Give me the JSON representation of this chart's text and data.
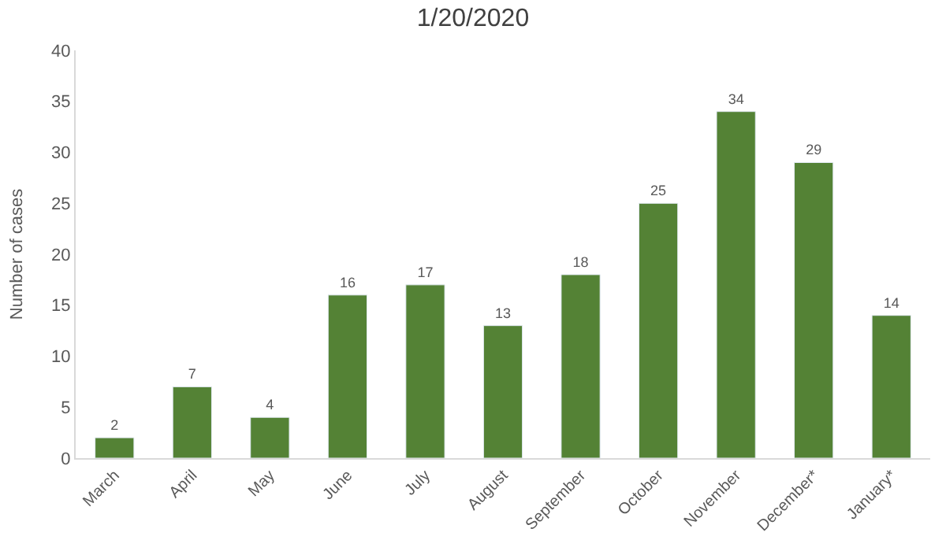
{
  "chart_data": {
    "type": "bar",
    "title": "1/20/2020",
    "ylabel": "Number of cases",
    "categories": [
      "March",
      "April",
      "May",
      "June",
      "July",
      "August",
      "September",
      "October",
      "November",
      "December*",
      "January*"
    ],
    "values": [
      2,
      7,
      4,
      16,
      17,
      13,
      18,
      25,
      34,
      29,
      14
    ],
    "color": "#548235",
    "ylim": [
      0,
      40
    ],
    "yticks": [
      0,
      5,
      10,
      15,
      20,
      25,
      30,
      35,
      40
    ],
    "grid": false,
    "data_labels": true
  }
}
